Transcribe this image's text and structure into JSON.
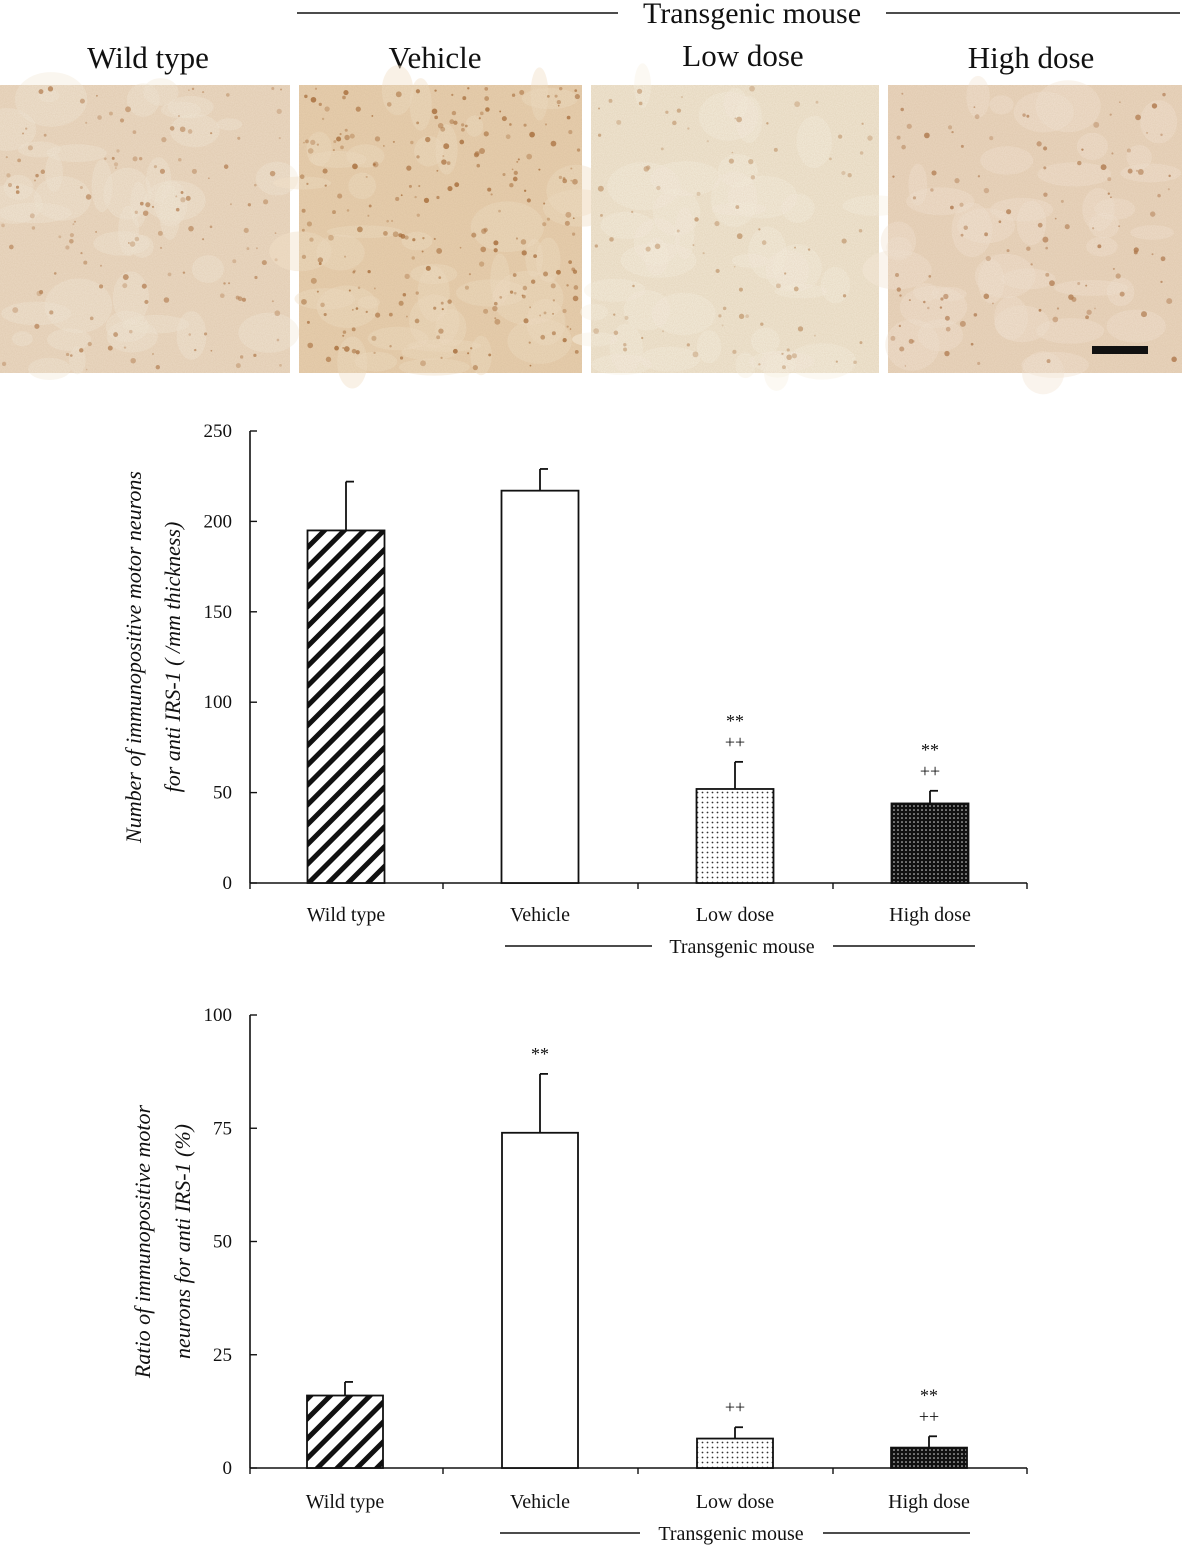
{
  "header": {
    "group_label": "Transgenic mouse",
    "panels": [
      "Wild type",
      "Vehicle",
      "Low dose",
      "High dose"
    ]
  },
  "micrograph_tints": [
    {
      "base": "#ecd9c3",
      "light": "#f5eadb",
      "dot": "#b7855a",
      "density": 0.55
    },
    {
      "base": "#e8cfae",
      "light": "#f2e1c8",
      "dot": "#a86f3d",
      "density": 1.0
    },
    {
      "base": "#f1e7d3",
      "light": "#f8f1e4",
      "dot": "#c29a72",
      "density": 0.35
    },
    {
      "base": "#ebd6bf",
      "light": "#f4e7d6",
      "dot": "#b07b50",
      "density": 0.45
    }
  ],
  "chart_data": [
    {
      "type": "bar",
      "categories": [
        "Wild type",
        "Vehicle",
        "Low dose",
        "High dose"
      ],
      "values": [
        195,
        217,
        52,
        44
      ],
      "errors": [
        27,
        12,
        15,
        7
      ],
      "annotations": [
        [],
        [],
        [
          "**",
          "++"
        ],
        [
          "**",
          "++"
        ]
      ],
      "patterns": [
        "diagonal",
        "none",
        "light-dots",
        "dark-dots"
      ],
      "ylabel_lines": [
        "Number of immunopositive motor neurons",
        "for anti IRS-1 ( /mm thickness)"
      ],
      "yticks": [
        0,
        50,
        100,
        150,
        200,
        250
      ],
      "ylim": [
        0,
        250
      ],
      "group_label": "Transgenic mouse"
    },
    {
      "type": "bar",
      "categories": [
        "Wild type",
        "Vehicle",
        "Low dose",
        "High dose"
      ],
      "values": [
        16,
        74,
        6.5,
        4.5
      ],
      "errors": [
        3,
        13,
        2.5,
        2.5
      ],
      "annotations": [
        [],
        [
          "**"
        ],
        [
          "++"
        ],
        [
          "**",
          "++"
        ]
      ],
      "patterns": [
        "diagonal",
        "none",
        "light-dots",
        "dark-dots"
      ],
      "ylabel_lines": [
        "Ratio of immunopositive motor",
        "neurons for anti IRS-1 (%)"
      ],
      "yticks": [
        0,
        25,
        50,
        75,
        100
      ],
      "ylim": [
        0,
        100
      ],
      "group_label": "Transgenic mouse"
    }
  ]
}
